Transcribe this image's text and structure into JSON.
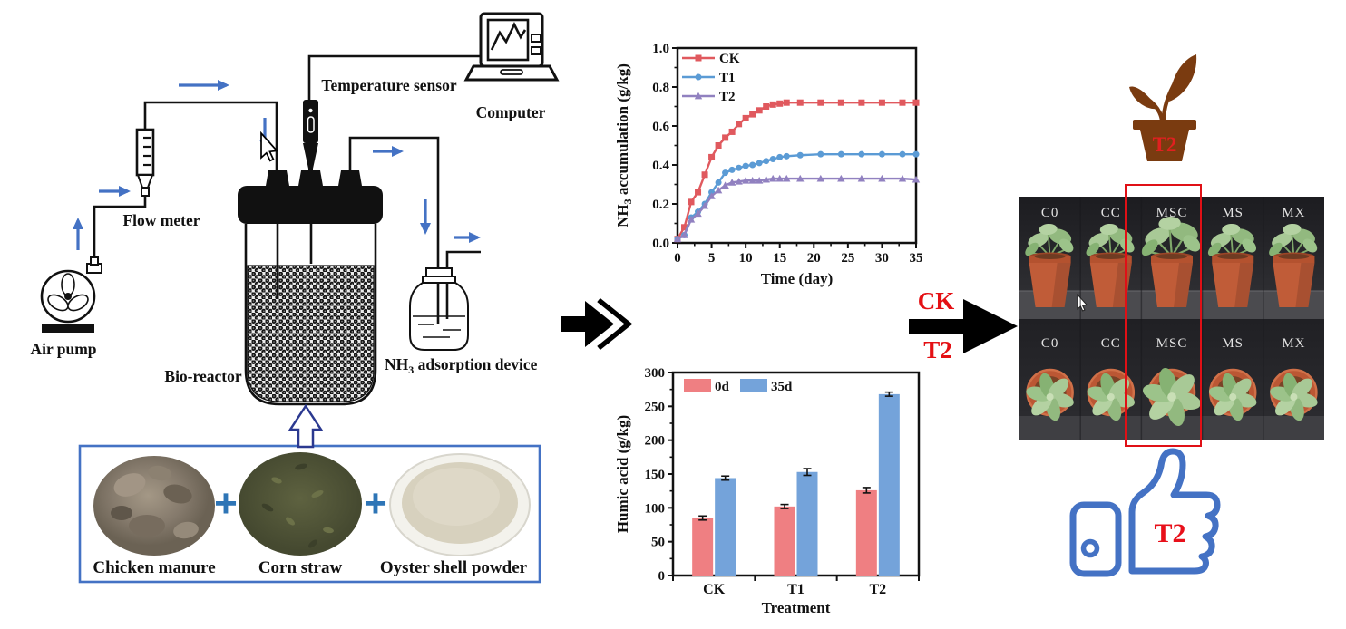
{
  "diagram": {
    "air_pump_label": "Air pump",
    "flow_meter_label": "Flow meter",
    "temperature_sensor_label": "Temperature sensor",
    "computer_label": "Computer",
    "bio_reactor_label": "Bio-reactor",
    "adsorption_device_label": {
      "prefix": "NH",
      "sub": "3",
      "suffix": " adsorption device"
    },
    "ingredients": {
      "plus_sign": "+",
      "items": [
        {
          "label": "Chicken manure"
        },
        {
          "label": "Corn straw"
        },
        {
          "label": "Oyster shell powder"
        }
      ]
    }
  },
  "chart_data": [
    {
      "type": "line",
      "title": "",
      "xlabel": "Time (day)",
      "ylabel": {
        "prefix": "NH",
        "sub": "3",
        "suffix": " accumulation (g/kg)"
      },
      "xlim": [
        0,
        35
      ],
      "ylim": [
        0,
        1.0
      ],
      "xticks": [
        0,
        5,
        10,
        15,
        20,
        25,
        30,
        35
      ],
      "yticks": [
        0.0,
        0.2,
        0.4,
        0.6,
        0.8,
        1.0
      ],
      "grid": false,
      "legend_position": "top-left",
      "x": [
        0,
        1,
        2,
        3,
        4,
        5,
        6,
        7,
        8,
        9,
        10,
        11,
        12,
        13,
        14,
        15,
        16,
        18,
        21,
        24,
        27,
        30,
        33,
        35
      ],
      "series": [
        {
          "name": "CK",
          "color": "#E0595E",
          "marker": "square",
          "values": [
            0.02,
            0.08,
            0.21,
            0.26,
            0.35,
            0.44,
            0.5,
            0.54,
            0.57,
            0.61,
            0.64,
            0.66,
            0.68,
            0.7,
            0.71,
            0.715,
            0.72,
            0.72,
            0.72,
            0.72,
            0.72,
            0.72,
            0.72,
            0.72
          ]
        },
        {
          "name": "T1",
          "color": "#5B9BD5",
          "marker": "circle",
          "values": [
            0.02,
            0.04,
            0.13,
            0.16,
            0.2,
            0.26,
            0.31,
            0.36,
            0.375,
            0.385,
            0.395,
            0.4,
            0.41,
            0.42,
            0.43,
            0.44,
            0.445,
            0.45,
            0.455,
            0.455,
            0.455,
            0.455,
            0.455,
            0.455
          ]
        },
        {
          "name": "T2",
          "color": "#9181C0",
          "marker": "triangle",
          "values": [
            0.02,
            0.04,
            0.12,
            0.15,
            0.19,
            0.24,
            0.27,
            0.295,
            0.31,
            0.315,
            0.32,
            0.32,
            0.32,
            0.325,
            0.33,
            0.33,
            0.33,
            0.33,
            0.33,
            0.33,
            0.33,
            0.33,
            0.33,
            0.325
          ]
        }
      ]
    },
    {
      "type": "bar",
      "title": "",
      "xlabel": "Treatment",
      "ylabel": "Humic acid (g/kg)",
      "ylim": [
        0,
        300
      ],
      "yticks": [
        0,
        50,
        100,
        150,
        200,
        250,
        300
      ],
      "grid": false,
      "legend_position": "top-left",
      "categories": [
        "CK",
        "T1",
        "T2"
      ],
      "series": [
        {
          "name": "0d",
          "color": "#EF7F82",
          "values": [
            85,
            102,
            126
          ],
          "errors": [
            3,
            3,
            4
          ]
        },
        {
          "name": "35d",
          "color": "#74A3DA",
          "values": [
            144,
            153,
            268
          ],
          "errors": [
            3,
            5,
            3
          ]
        }
      ]
    }
  ],
  "results": {
    "pot_icon_label": "T2",
    "arrow_label_top": "CK",
    "arrow_label_bottom": "T2",
    "thumbs_up_label": "T2",
    "photo_grid": {
      "row_top_labels": [
        "C0",
        "CC",
        "MSC",
        "MS",
        "MX"
      ],
      "row_bottom_labels": [
        "C0",
        "CC",
        "MSC",
        "MS",
        "MX"
      ],
      "highlighted_column": "MSC"
    }
  },
  "colors": {
    "flow_arrow_blue": "#4472C4",
    "box_border_blue": "#4472C4",
    "plus_blue": "#2E75B6",
    "highlight_red": "#E01016",
    "pot_icon_brown": "#7A3B10",
    "series_ck": "#E0595E",
    "series_t1": "#5B9BD5",
    "series_t2": "#9181C0",
    "bar_0d": "#EF7F82",
    "bar_35d": "#74A3DA"
  }
}
